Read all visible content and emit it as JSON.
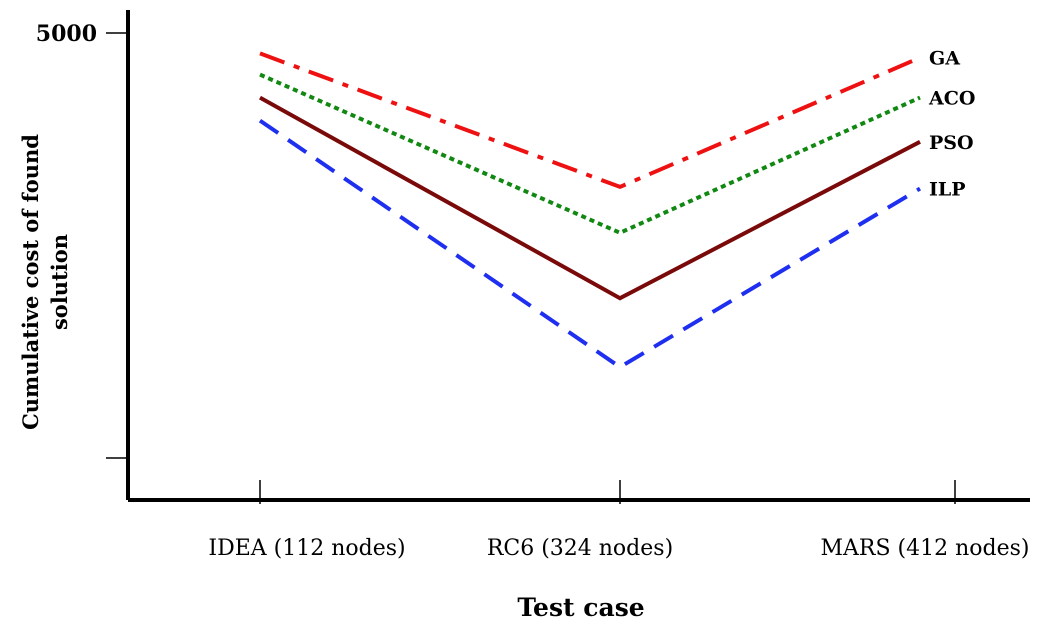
{
  "chart_data": {
    "type": "line",
    "title": "",
    "xlabel": "Test case",
    "ylabel_lines": [
      "Cumulative cost of found",
      "solution"
    ],
    "categories": [
      "IDEA (112 nodes)",
      "RC6 (324 nodes)",
      "MARS (412 nodes)"
    ],
    "y_tick_labels": [
      "5000",
      ""
    ],
    "ylim": [
      0,
      5000
    ],
    "grid": false,
    "series": [
      {
        "name": "GA",
        "values": [
          4760,
          3190,
          4710
        ],
        "color": "#ee1111",
        "style": "dash-dot"
      },
      {
        "name": "ACO",
        "values": [
          4510,
          2650,
          4240
        ],
        "color": "#118811",
        "style": "dotted"
      },
      {
        "name": "PSO",
        "values": [
          4240,
          1880,
          3720
        ],
        "color": "#7a0a0a",
        "style": "solid"
      },
      {
        "name": "ILP",
        "values": [
          3970,
          1070,
          3170
        ],
        "color": "#1f2ff0",
        "style": "dashed"
      }
    ]
  }
}
